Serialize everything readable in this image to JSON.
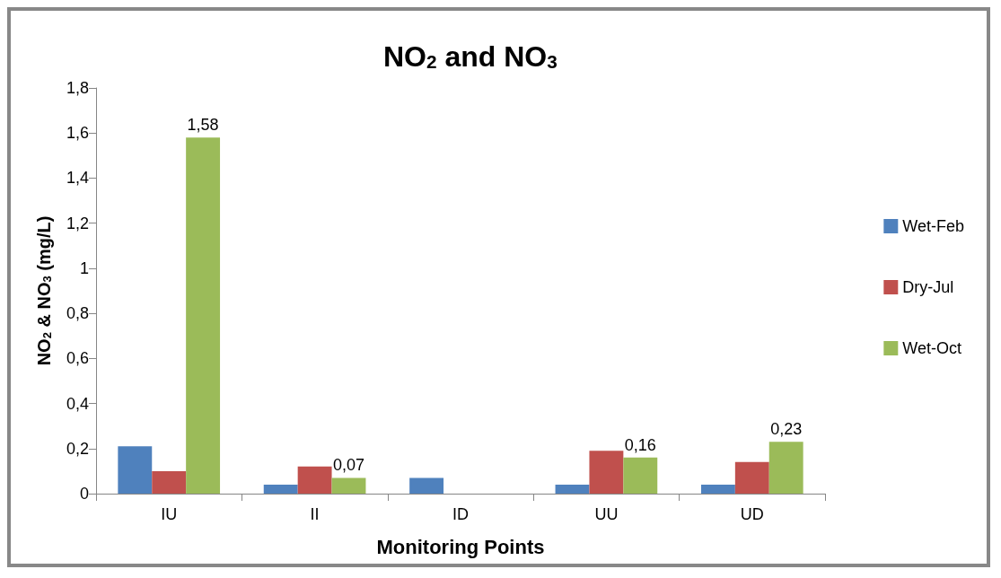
{
  "chart_data": {
    "type": "bar",
    "title": "NO$_{2}$ and NO$_{3}$",
    "xlabel": "Monitoring Points",
    "ylabel": "NO$_{2}$ & NO$_{3}$ (mg/L)",
    "categories": [
      "IU",
      "II",
      "ID",
      "UU",
      "UD"
    ],
    "series": [
      {
        "name": "Wet-Feb",
        "color": "#4f81bd",
        "values": [
          0.21,
          0.04,
          0.07,
          0.04,
          0.04
        ]
      },
      {
        "name": "Dry-Jul",
        "color": "#c0504d",
        "values": [
          0.1,
          0.12,
          null,
          0.19,
          0.14
        ]
      },
      {
        "name": "Wet-Oct",
        "color": "#9bbb59",
        "values": [
          1.58,
          0.07,
          null,
          0.16,
          0.23
        ],
        "value_labels": [
          "1,58",
          "0,07",
          null,
          "0,16",
          "0,23"
        ]
      }
    ],
    "ylim": [
      0,
      1.8
    ],
    "yticks": [
      0,
      {
        "value": 0.2,
        "label": "0,2"
      },
      {
        "value": 0.4,
        "label": "0,4"
      },
      {
        "value": 0.6,
        "label": "0,6"
      },
      {
        "value": 0.8,
        "label": "0,8"
      },
      1,
      {
        "value": 1.2,
        "label": "1,2"
      },
      {
        "value": 1.4,
        "label": "1,4"
      },
      {
        "value": 1.6,
        "label": "1,6"
      },
      {
        "value": 1.8,
        "label": "1,8"
      }
    ],
    "grid": false,
    "legend": "right"
  }
}
